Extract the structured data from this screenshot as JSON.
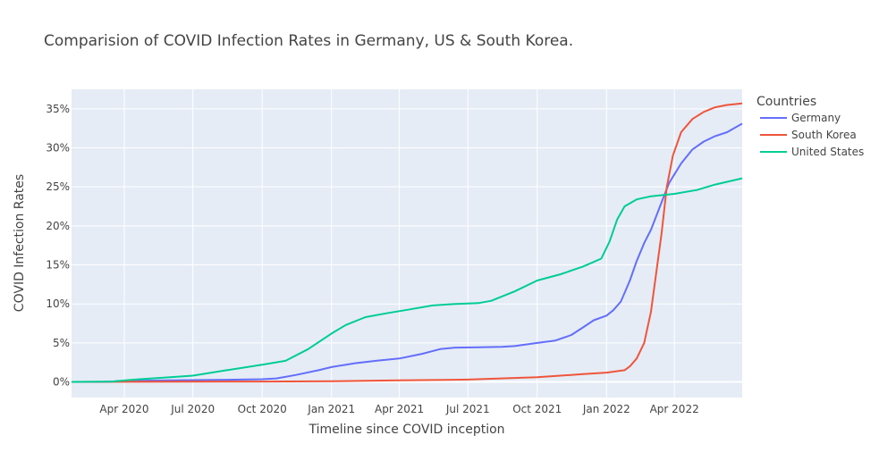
{
  "chart_data": {
    "type": "line",
    "title": "Comparision of COVID Infection Rates in Germany, US & South Korea.",
    "xlabel": "Timeline since COVID inception",
    "ylabel": "COVID Infection Rates",
    "legend_title": "Countries",
    "legend_position": "top-right",
    "grid": true,
    "xlim": [
      "2020-01-22",
      "2022-06-30"
    ],
    "ylim": [
      -2,
      37.5
    ],
    "y_unit": "%",
    "x_ticks": [
      {
        "date": "2020-04-01",
        "label": "Apr 2020"
      },
      {
        "date": "2020-07-01",
        "label": "Jul 2020"
      },
      {
        "date": "2020-10-01",
        "label": "Oct 2020"
      },
      {
        "date": "2021-01-01",
        "label": "Jan 2021"
      },
      {
        "date": "2021-04-01",
        "label": "Apr 2021"
      },
      {
        "date": "2021-07-01",
        "label": "Jul 2021"
      },
      {
        "date": "2021-10-01",
        "label": "Oct 2021"
      },
      {
        "date": "2022-01-01",
        "label": "Jan 2022"
      },
      {
        "date": "2022-04-01",
        "label": "Apr 2022"
      }
    ],
    "y_ticks": [
      {
        "value": 0,
        "label": "0%"
      },
      {
        "value": 5,
        "label": "5%"
      },
      {
        "value": 10,
        "label": "10%"
      },
      {
        "value": 15,
        "label": "15%"
      },
      {
        "value": 20,
        "label": "20%"
      },
      {
        "value": 25,
        "label": "25%"
      },
      {
        "value": 30,
        "label": "30%"
      },
      {
        "value": 35,
        "label": "35%"
      }
    ],
    "series": [
      {
        "name": "Germany",
        "color": "#636efa",
        "points": [
          [
            "2020-01-22",
            0
          ],
          [
            "2020-03-01",
            0
          ],
          [
            "2020-04-15",
            0.15
          ],
          [
            "2020-06-01",
            0.2
          ],
          [
            "2020-08-01",
            0.25
          ],
          [
            "2020-10-01",
            0.35
          ],
          [
            "2020-10-20",
            0.45
          ],
          [
            "2020-11-15",
            0.9
          ],
          [
            "2020-12-15",
            1.5
          ],
          [
            "2021-01-01",
            1.9
          ],
          [
            "2021-02-01",
            2.4
          ],
          [
            "2021-03-01",
            2.7
          ],
          [
            "2021-04-01",
            3.0
          ],
          [
            "2021-05-01",
            3.6
          ],
          [
            "2021-05-25",
            4.2
          ],
          [
            "2021-06-15",
            4.4
          ],
          [
            "2021-07-15",
            4.45
          ],
          [
            "2021-08-15",
            4.5
          ],
          [
            "2021-09-01",
            4.6
          ],
          [
            "2021-10-01",
            5.0
          ],
          [
            "2021-10-25",
            5.3
          ],
          [
            "2021-11-15",
            6.0
          ],
          [
            "2021-12-01",
            7.0
          ],
          [
            "2021-12-15",
            7.9
          ],
          [
            "2022-01-01",
            8.5
          ],
          [
            "2022-01-10",
            9.2
          ],
          [
            "2022-01-20",
            10.3
          ],
          [
            "2022-02-01",
            13.0
          ],
          [
            "2022-02-10",
            15.5
          ],
          [
            "2022-02-20",
            17.8
          ],
          [
            "2022-03-01",
            19.5
          ],
          [
            "2022-03-15",
            23.0
          ],
          [
            "2022-03-25",
            25.5
          ],
          [
            "2022-04-10",
            28.0
          ],
          [
            "2022-04-25",
            29.8
          ],
          [
            "2022-05-10",
            30.8
          ],
          [
            "2022-05-25",
            31.5
          ],
          [
            "2022-06-10",
            32.0
          ],
          [
            "2022-06-30",
            33.1
          ]
        ]
      },
      {
        "name": "South Korea",
        "color": "#ef553b",
        "points": [
          [
            "2020-01-22",
            0
          ],
          [
            "2020-10-01",
            0.05
          ],
          [
            "2021-01-01",
            0.1
          ],
          [
            "2021-04-01",
            0.2
          ],
          [
            "2021-07-01",
            0.3
          ],
          [
            "2021-10-01",
            0.6
          ],
          [
            "2021-12-01",
            1.0
          ],
          [
            "2022-01-01",
            1.2
          ],
          [
            "2022-01-25",
            1.5
          ],
          [
            "2022-02-01",
            2.0
          ],
          [
            "2022-02-10",
            3.0
          ],
          [
            "2022-02-20",
            5.0
          ],
          [
            "2022-03-01",
            9.0
          ],
          [
            "2022-03-08",
            14.0
          ],
          [
            "2022-03-15",
            19.0
          ],
          [
            "2022-03-22",
            25.0
          ],
          [
            "2022-03-30",
            29.0
          ],
          [
            "2022-04-10",
            32.0
          ],
          [
            "2022-04-25",
            33.7
          ],
          [
            "2022-05-10",
            34.6
          ],
          [
            "2022-05-25",
            35.2
          ],
          [
            "2022-06-10",
            35.5
          ],
          [
            "2022-06-30",
            35.7
          ]
        ]
      },
      {
        "name": "United States",
        "color": "#00cc96",
        "points": [
          [
            "2020-01-22",
            0
          ],
          [
            "2020-03-15",
            0.05
          ],
          [
            "2020-04-15",
            0.3
          ],
          [
            "2020-06-01",
            0.6
          ],
          [
            "2020-07-01",
            0.8
          ],
          [
            "2020-08-15",
            1.5
          ],
          [
            "2020-10-01",
            2.2
          ],
          [
            "2020-11-01",
            2.7
          ],
          [
            "2020-12-01",
            4.2
          ],
          [
            "2021-01-01",
            6.2
          ],
          [
            "2021-01-20",
            7.3
          ],
          [
            "2021-02-15",
            8.3
          ],
          [
            "2021-03-15",
            8.8
          ],
          [
            "2021-04-15",
            9.3
          ],
          [
            "2021-05-15",
            9.8
          ],
          [
            "2021-06-15",
            10.0
          ],
          [
            "2021-07-15",
            10.1
          ],
          [
            "2021-08-01",
            10.4
          ],
          [
            "2021-09-01",
            11.6
          ],
          [
            "2021-10-01",
            13.0
          ],
          [
            "2021-11-01",
            13.8
          ],
          [
            "2021-12-01",
            14.8
          ],
          [
            "2021-12-25",
            15.8
          ],
          [
            "2022-01-05",
            18.0
          ],
          [
            "2022-01-15",
            20.8
          ],
          [
            "2022-01-25",
            22.5
          ],
          [
            "2022-02-10",
            23.4
          ],
          [
            "2022-03-01",
            23.8
          ],
          [
            "2022-04-01",
            24.1
          ],
          [
            "2022-05-01",
            24.6
          ],
          [
            "2022-05-25",
            25.3
          ],
          [
            "2022-06-30",
            26.1
          ]
        ]
      }
    ]
  }
}
